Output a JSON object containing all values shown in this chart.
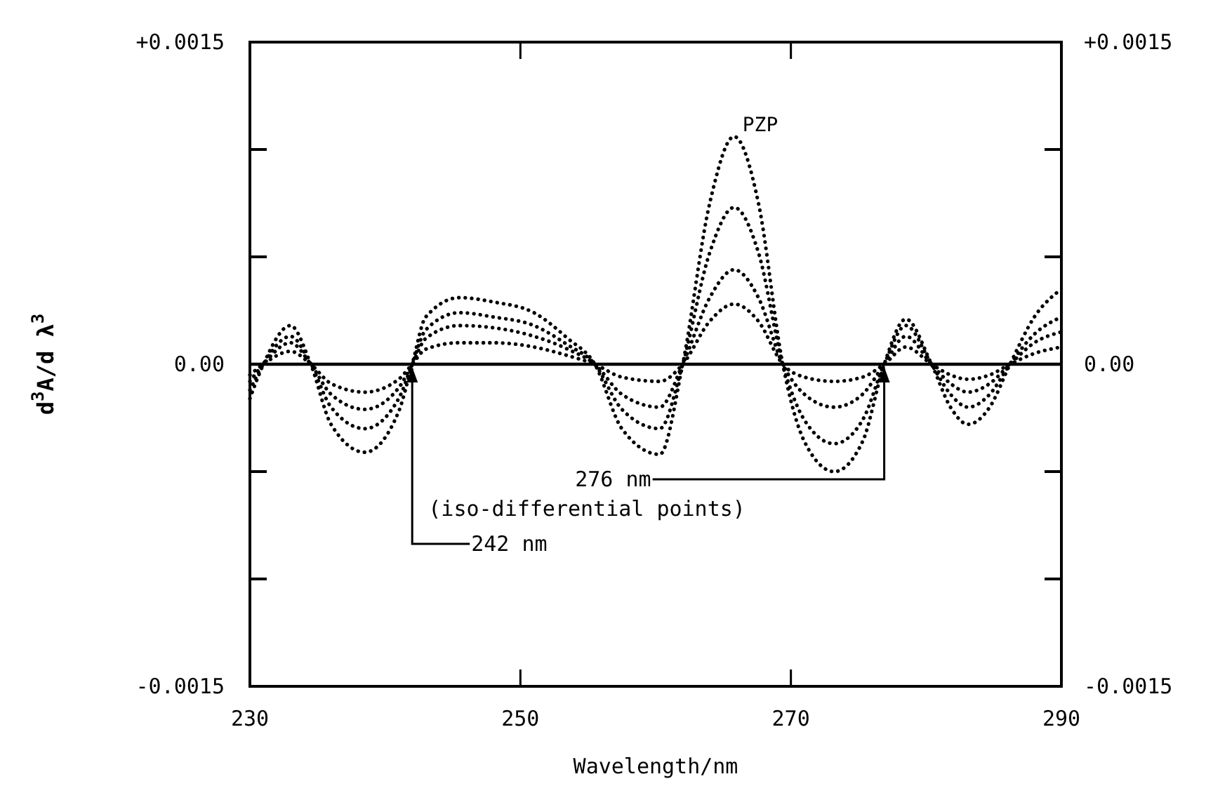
{
  "chart_data": {
    "type": "line",
    "xlabel": "Wavelength/nm",
    "ylabel": "d$^{3}$A/d λ$^{3}$",
    "x": [
      230,
      231,
      233,
      234.5,
      236,
      238.5,
      241,
      242,
      243,
      245.5,
      248,
      251,
      253.5,
      255.5,
      257.5,
      260.3,
      262,
      264,
      265.8,
      267.6,
      269.4,
      271,
      273.2,
      275.3,
      276.9,
      278.5,
      280.4,
      281.8,
      283.1,
      284.7,
      286.2,
      288,
      290
    ],
    "series": [
      {
        "name": "PZP",
        "color": "#000000",
        "values": [
          -0.00016,
          0,
          0.00018,
          0,
          -0.00028,
          -0.00041,
          -0.00022,
          0,
          0.00022,
          0.00031,
          0.00029,
          0.00024,
          0.00012,
          0,
          -0.0003,
          -0.00042,
          0,
          0.00075,
          0.00106,
          0.00075,
          0,
          -0.00036,
          -0.0005,
          -0.00036,
          0,
          0.00021,
          0,
          -0.0002,
          -0.00028,
          -0.0002,
          0,
          0.00022,
          0.00035
        ]
      },
      {
        "color": "#000000",
        "values": [
          -0.00012,
          0,
          0.00013,
          0,
          -0.0002,
          -0.0003,
          -0.00016,
          0,
          0.00016,
          0.00024,
          0.00022,
          0.00018,
          9e-05,
          0,
          -0.00021,
          -0.0003,
          0,
          0.00052,
          0.00073,
          0.00052,
          0,
          -0.00026,
          -0.00037,
          -0.00026,
          0,
          0.00018,
          0,
          -0.00014,
          -0.0002,
          -0.00014,
          0,
          0.00014,
          0.00022
        ]
      },
      {
        "color": "#000000",
        "values": [
          -8e-05,
          0,
          0.0001,
          0,
          -0.00014,
          -0.00021,
          -0.00011,
          0,
          0.00012,
          0.00018,
          0.00017,
          0.00013,
          7e-05,
          0,
          -0.00014,
          -0.0002,
          0,
          0.00031,
          0.00044,
          0.00031,
          0,
          -0.00014,
          -0.0002,
          -0.00014,
          0,
          0.00013,
          0,
          -9e-05,
          -0.00013,
          -9e-05,
          0,
          0.0001,
          0.00015
        ]
      },
      {
        "color": "#000000",
        "values": [
          -5e-05,
          0,
          6e-05,
          0,
          -9e-05,
          -0.00013,
          -7e-05,
          0,
          7e-05,
          0.0001,
          0.0001,
          8e-05,
          4e-05,
          0,
          -6e-05,
          -8e-05,
          0,
          0.0002,
          0.00028,
          0.0002,
          0,
          -6e-05,
          -8e-05,
          -6e-05,
          0,
          8e-05,
          0,
          -5e-05,
          -7e-05,
          -5e-05,
          0,
          5e-05,
          8e-05
        ]
      }
    ],
    "xlim": [
      230,
      290
    ],
    "xticks": [
      230,
      250,
      270,
      290
    ],
    "ylim": [
      -0.0015,
      0.0015
    ],
    "yticks": [
      {
        "value": 0.0015,
        "label": "+0.0015"
      },
      {
        "value": 0.001,
        "label": null
      },
      {
        "value": 0.0005,
        "label": null
      },
      {
        "value": 0,
        "label": "0.00"
      },
      {
        "value": -0.0005,
        "label": null
      },
      {
        "value": -0.001,
        "label": null
      },
      {
        "value": -0.0015,
        "label": "-0.0015"
      }
    ],
    "y2lim": [
      -0.0015,
      0.0015
    ],
    "y2ticks": [
      {
        "value": 0.0015,
        "label": "+0.0015"
      },
      {
        "value": 0.001,
        "label": null
      },
      {
        "value": 0.0005,
        "label": null
      },
      {
        "value": 0,
        "label": "0.00"
      },
      {
        "value": -0.0005,
        "label": null
      },
      {
        "value": -0.001,
        "label": null
      },
      {
        "value": -0.0015,
        "label": "-0.0015"
      }
    ],
    "ref_lines": [
      {
        "axis": "y",
        "value": 0,
        "color": "#000000",
        "line_style": "solid"
      }
    ],
    "annotations": [
      {
        "text": "276 nm",
        "x": 276.9,
        "y": 0
      },
      "(iso-differential points)",
      {
        "text": "242 nm",
        "x": 242,
        "y": 0
      }
    ],
    "grid": false,
    "marker": "none",
    "line_style": "dotted"
  }
}
